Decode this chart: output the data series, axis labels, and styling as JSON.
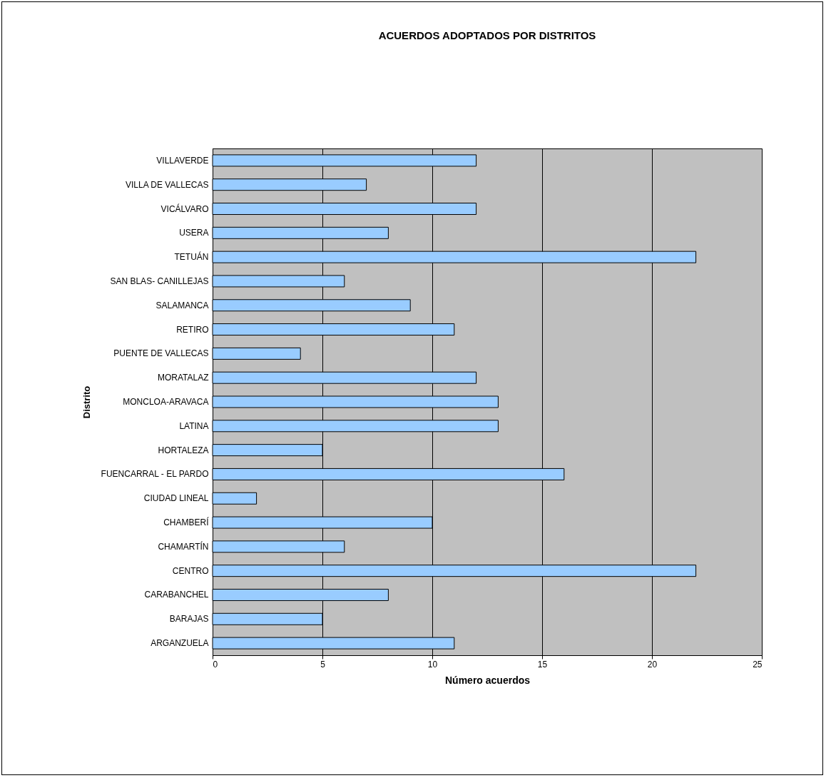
{
  "chart_data": {
    "type": "bar",
    "orientation": "horizontal",
    "title": "ACUERDOS ADOPTADOS POR DISTRITOS",
    "xlabel": "Número acuerdos",
    "ylabel": "Distrito",
    "categories": [
      "VILLAVERDE",
      "VILLA DE VALLECAS",
      "VICÁLVARO",
      "USERA",
      "TETUÁN",
      "SAN BLAS- CANILLEJAS",
      "SALAMANCA",
      "RETIRO",
      "PUENTE DE VALLECAS",
      "MORATALAZ",
      "MONCLOA-ARAVACA",
      "LATINA",
      "HORTALEZA",
      "FUENCARRAL - EL PARDO",
      "CIUDAD LINEAL",
      "CHAMBERÍ",
      "CHAMARTÍN",
      "CENTRO",
      "CARABANCHEL",
      "BARAJAS",
      "ARGANZUELA"
    ],
    "values": [
      12,
      7,
      12,
      8,
      22,
      6,
      9,
      11,
      4,
      12,
      13,
      13,
      5,
      16,
      2,
      10,
      6,
      22,
      8,
      5,
      11
    ],
    "color": "#99ccff",
    "xlim": [
      0,
      25
    ],
    "xticks": [
      0,
      5,
      10,
      15,
      20,
      25
    ],
    "grid": "x"
  }
}
